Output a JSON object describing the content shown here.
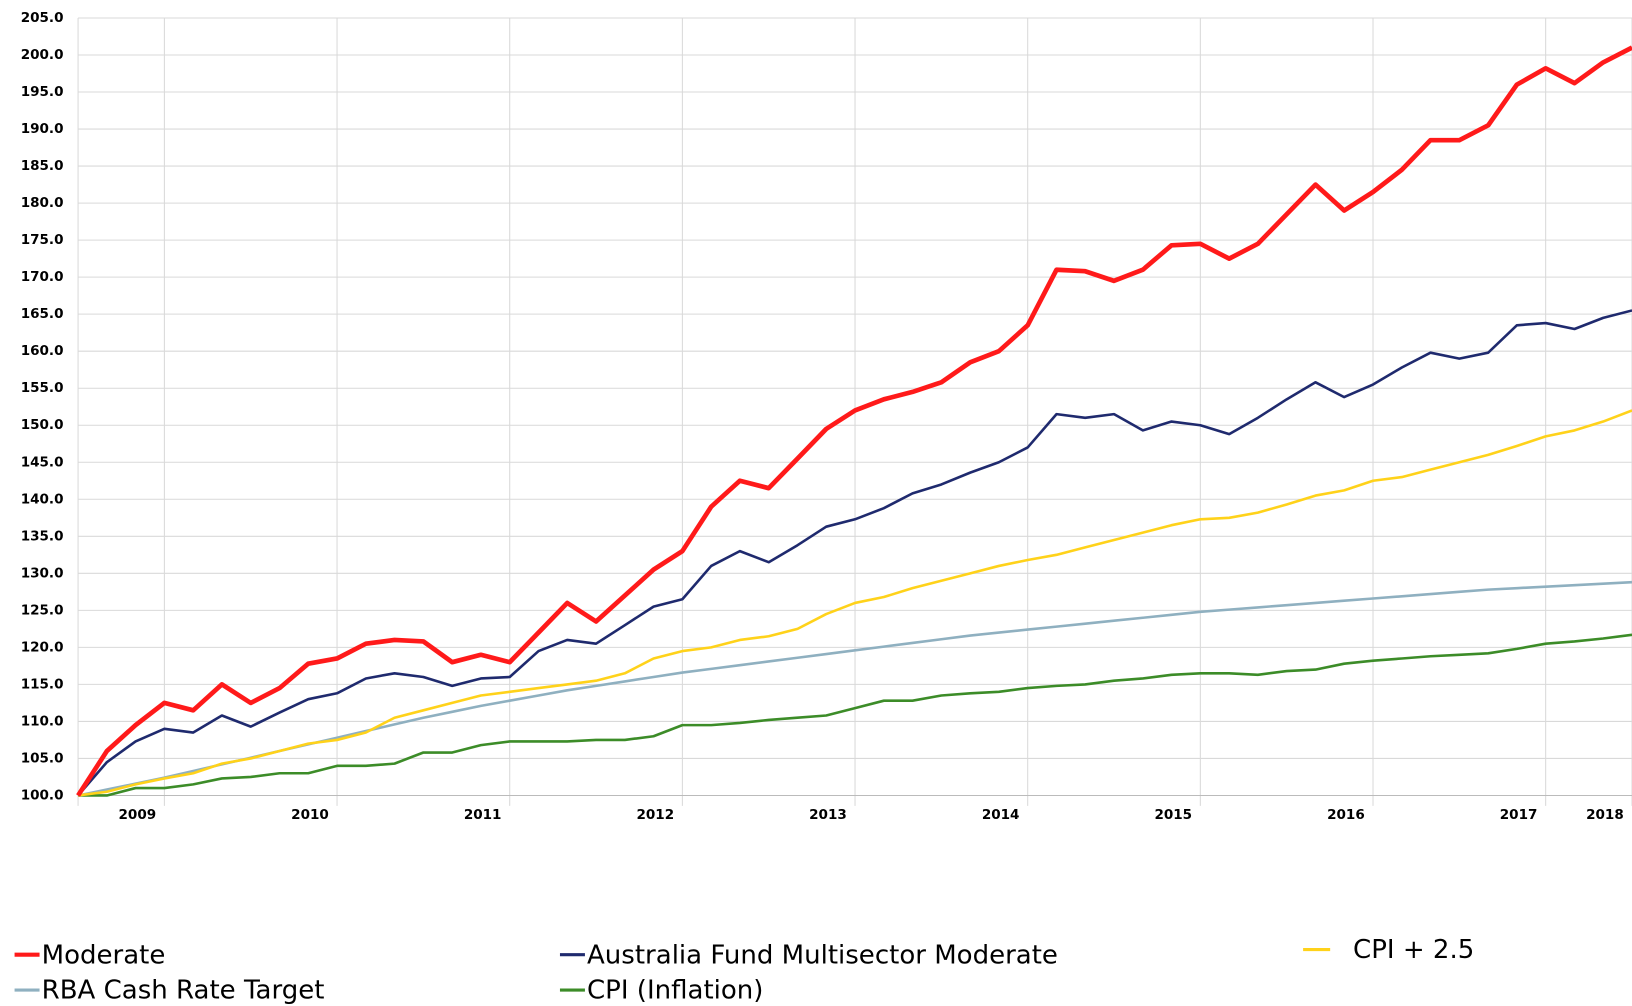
{
  "chart_data": {
    "type": "line",
    "x": [
      2008.5,
      2008.667,
      2008.833,
      2009,
      2009.167,
      2009.333,
      2009.5,
      2009.667,
      2009.833,
      2010,
      2010.167,
      2010.333,
      2010.5,
      2010.667,
      2010.833,
      2011,
      2011.167,
      2011.333,
      2011.5,
      2011.667,
      2011.833,
      2012,
      2012.167,
      2012.333,
      2012.5,
      2012.667,
      2012.833,
      2013,
      2013.167,
      2013.333,
      2013.5,
      2013.667,
      2013.833,
      2014,
      2014.167,
      2014.333,
      2014.5,
      2014.667,
      2014.833,
      2015,
      2015.167,
      2015.333,
      2015.5,
      2015.667,
      2015.833,
      2016,
      2016.167,
      2016.333,
      2016.5,
      2016.667,
      2016.833,
      2017,
      2017.167,
      2017.333,
      2017.5
    ],
    "series": [
      {
        "name": "Moderate",
        "color": "#ff1a1a",
        "values": [
          100,
          106,
          109.5,
          112.5,
          111.5,
          115,
          112.5,
          114.5,
          117.8,
          118.5,
          120.5,
          121,
          120.8,
          118,
          119,
          118,
          122,
          126,
          123.5,
          127,
          130.5,
          133,
          139,
          142.5,
          141.5,
          145.5,
          149.5,
          152,
          153.5,
          154.5,
          155.8,
          158.5,
          160,
          163.5,
          171,
          170.8,
          169.5,
          171,
          174.3,
          174.5,
          172.5,
          174.5,
          178.5,
          182.5,
          179,
          181.5,
          184.5,
          188.5,
          188.5,
          190.5,
          196,
          198.2,
          196.2,
          199,
          201
        ]
      },
      {
        "name": "Australia Fund Multisector Moderate",
        "color": "#1f2a6e",
        "values": [
          100,
          104.5,
          107.3,
          109,
          108.5,
          110.8,
          109.3,
          111.2,
          113,
          113.8,
          115.8,
          116.5,
          116,
          114.8,
          115.8,
          116,
          119.5,
          121,
          120.5,
          123,
          125.5,
          126.5,
          131,
          133,
          131.5,
          133.8,
          136.3,
          137.3,
          138.8,
          140.8,
          142,
          143.6,
          145,
          147,
          151.5,
          151,
          151.5,
          149.3,
          150.5,
          150,
          148.8,
          151,
          153.5,
          155.8,
          153.8,
          155.5,
          157.8,
          159.8,
          159,
          159.8,
          163.5,
          163.8,
          163,
          164.5,
          165.5
        ]
      },
      {
        "name": "CPI + 2.5",
        "color": "#ffd21a",
        "values": [
          100,
          100.5,
          101.5,
          102.3,
          103,
          104.3,
          105,
          106,
          107,
          107.5,
          108.5,
          110.5,
          111.5,
          112.5,
          113.5,
          114,
          114.5,
          115,
          115.5,
          116.5,
          118.5,
          119.5,
          120,
          121,
          121.5,
          122.5,
          124.5,
          126,
          126.8,
          128,
          129,
          130,
          131,
          131.8,
          132.5,
          133.5,
          134.5,
          135.5,
          136.5,
          137.3,
          137.5,
          138.2,
          139.3,
          140.5,
          141.2,
          142.5,
          143,
          144,
          145,
          146,
          147.2,
          148.5,
          149.3,
          150.5,
          152
        ]
      },
      {
        "name": "RBA Cash Rate Target",
        "color": "#8fb0c0",
        "values": [
          100,
          100.8,
          101.6,
          102.4,
          103.3,
          104.2,
          105.1,
          106,
          106.9,
          107.8,
          108.7,
          109.6,
          110.5,
          111.3,
          112.1,
          112.8,
          113.5,
          114.2,
          114.8,
          115.4,
          116,
          116.6,
          117.1,
          117.6,
          118.1,
          118.6,
          119.1,
          119.6,
          120.1,
          120.6,
          121.1,
          121.6,
          122,
          122.4,
          122.8,
          123.2,
          123.6,
          124,
          124.4,
          124.8,
          125.1,
          125.4,
          125.7,
          126,
          126.3,
          126.6,
          126.9,
          127.2,
          127.5,
          127.8,
          128,
          128.2,
          128.4,
          128.6,
          128.8
        ]
      },
      {
        "name": "CPI (Inflation)",
        "color": "#3c8c28",
        "values": [
          100,
          100,
          101,
          101,
          101.5,
          102.3,
          102.5,
          103,
          103,
          104,
          104,
          104.3,
          105.8,
          105.8,
          106.8,
          107.3,
          107.3,
          107.3,
          107.5,
          107.5,
          108,
          109.5,
          109.5,
          109.8,
          110.2,
          110.5,
          110.8,
          111.8,
          112.8,
          112.8,
          113.5,
          113.8,
          114,
          114.5,
          114.8,
          115,
          115.5,
          115.8,
          116.3,
          116.5,
          116.5,
          116.3,
          116.8,
          117,
          117.8,
          118.2,
          118.5,
          118.8,
          119,
          119.2,
          119.8,
          120.5,
          120.8,
          121.2,
          121.7
        ]
      }
    ],
    "xlim": [
      2008.5,
      2017.5
    ],
    "xticks": [
      2009,
      2010,
      2011,
      2012,
      2013,
      2014,
      2015,
      2016,
      2017,
      {
        "value": 2017.5,
        "label": "2018"
      }
    ],
    "ylim": [
      100,
      205
    ],
    "yticks": [
      {
        "value": 100,
        "label": "100.0"
      },
      {
        "value": 105,
        "label": "105.0"
      },
      {
        "value": 110,
        "label": "110.0"
      },
      {
        "value": 115,
        "label": "115.0"
      },
      {
        "value": 120,
        "label": "120.0"
      },
      {
        "value": 125,
        "label": "125.0"
      },
      {
        "value": 130,
        "label": "130.0"
      },
      {
        "value": 135,
        "label": "135.0"
      },
      {
        "value": 140,
        "label": "140.0"
      },
      {
        "value": 145,
        "label": "145.0"
      },
      {
        "value": 150,
        "label": "150.0"
      },
      {
        "value": 155,
        "label": "155.0"
      },
      {
        "value": 160,
        "label": "160.0"
      },
      {
        "value": 165,
        "label": "165.0"
      },
      {
        "value": 170,
        "label": "170.0"
      },
      {
        "value": 175,
        "label": "175.0"
      },
      {
        "value": 180,
        "label": "180.0"
      },
      {
        "value": 185,
        "label": "185.0"
      },
      {
        "value": 190,
        "label": "190.0"
      },
      {
        "value": 195,
        "label": "195.0"
      },
      {
        "value": 200,
        "label": "200.0"
      },
      {
        "value": 205,
        "label": "205.0"
      }
    ],
    "grid": true,
    "legend": "bottom"
  }
}
